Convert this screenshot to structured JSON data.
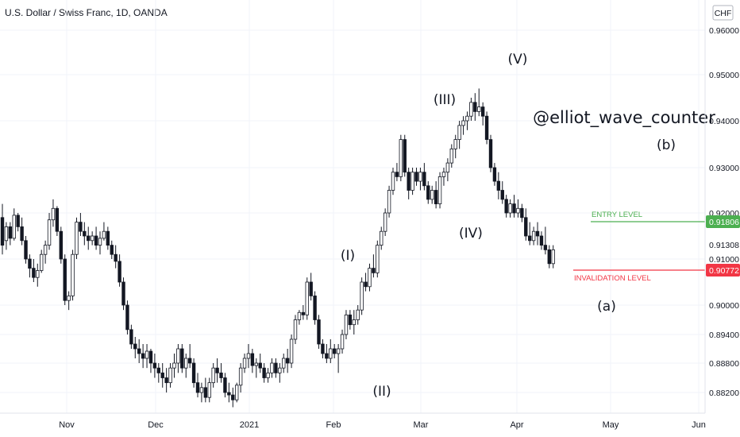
{
  "header": {
    "title": "U.S. Dollar / Swiss Franc, 1D, OANDA",
    "currency": "CHF"
  },
  "chart_data": {
    "type": "candlestick",
    "title": "U.S. Dollar / Swiss Franc, 1D, OANDA",
    "ylim": [
      0.88,
      0.96
    ],
    "y_ticks": [
      "0.96000",
      "0.95000",
      "0.94000",
      "0.93000",
      "0.92000",
      "0.91000",
      "0.90000",
      "0.89400",
      "0.88800",
      "0.88200"
    ],
    "x_ticks": [
      "Nov",
      "Dec",
      "2021",
      "Feb",
      "Mar",
      "Apr",
      "May",
      "Jun"
    ],
    "first_date": "2020-10-01",
    "candles": [
      [
        0.919,
        0.922,
        0.911,
        0.913
      ],
      [
        0.914,
        0.918,
        0.912,
        0.917
      ],
      [
        0.917,
        0.918,
        0.913,
        0.9145
      ],
      [
        0.9145,
        0.921,
        0.914,
        0.9195
      ],
      [
        0.9195,
        0.92,
        0.916,
        0.917
      ],
      [
        0.917,
        0.919,
        0.913,
        0.914
      ],
      [
        0.914,
        0.915,
        0.909,
        0.91
      ],
      [
        0.91,
        0.911,
        0.906,
        0.908
      ],
      [
        0.908,
        0.91,
        0.905,
        0.906
      ],
      [
        0.906,
        0.909,
        0.904,
        0.9075
      ],
      [
        0.9075,
        0.912,
        0.907,
        0.911
      ],
      [
        0.911,
        0.914,
        0.909,
        0.913
      ],
      [
        0.913,
        0.92,
        0.912,
        0.9185
      ],
      [
        0.9185,
        0.923,
        0.917,
        0.921
      ],
      [
        0.921,
        0.9215,
        0.915,
        0.916
      ],
      [
        0.916,
        0.917,
        0.909,
        0.91
      ],
      [
        0.91,
        0.911,
        0.9,
        0.901
      ],
      [
        0.901,
        0.903,
        0.899,
        0.902
      ],
      [
        0.902,
        0.912,
        0.901,
        0.911
      ],
      [
        0.911,
        0.919,
        0.91,
        0.918
      ],
      [
        0.918,
        0.92,
        0.915,
        0.916
      ],
      [
        0.916,
        0.918,
        0.913,
        0.915
      ],
      [
        0.915,
        0.917,
        0.912,
        0.914
      ],
      [
        0.914,
        0.916,
        0.913,
        0.915
      ],
      [
        0.915,
        0.917,
        0.912,
        0.913
      ],
      [
        0.913,
        0.916,
        0.911,
        0.9145
      ],
      [
        0.9145,
        0.918,
        0.914,
        0.916
      ],
      [
        0.916,
        0.917,
        0.912,
        0.913
      ],
      [
        0.913,
        0.914,
        0.91,
        0.911
      ],
      [
        0.911,
        0.913,
        0.908,
        0.9095
      ],
      [
        0.9095,
        0.911,
        0.904,
        0.905
      ],
      [
        0.905,
        0.906,
        0.899,
        0.9
      ],
      [
        0.9,
        0.901,
        0.894,
        0.895
      ],
      [
        0.895,
        0.896,
        0.891,
        0.892
      ],
      [
        0.892,
        0.8935,
        0.889,
        0.891
      ],
      [
        0.891,
        0.893,
        0.888,
        0.89
      ],
      [
        0.89,
        0.892,
        0.887,
        0.889
      ],
      [
        0.889,
        0.892,
        0.887,
        0.8905
      ],
      [
        0.8905,
        0.891,
        0.886,
        0.888
      ],
      [
        0.888,
        0.89,
        0.885,
        0.887
      ],
      [
        0.887,
        0.888,
        0.884,
        0.886
      ],
      [
        0.886,
        0.888,
        0.883,
        0.885
      ],
      [
        0.885,
        0.887,
        0.882,
        0.884
      ],
      [
        0.884,
        0.888,
        0.883,
        0.887
      ],
      [
        0.887,
        0.89,
        0.885,
        0.888
      ],
      [
        0.888,
        0.892,
        0.886,
        0.891
      ],
      [
        0.891,
        0.892,
        0.886,
        0.887
      ],
      [
        0.887,
        0.89,
        0.885,
        0.889
      ],
      [
        0.889,
        0.892,
        0.887,
        0.888
      ],
      [
        0.888,
        0.889,
        0.883,
        0.884
      ],
      [
        0.884,
        0.886,
        0.881,
        0.882
      ],
      [
        0.882,
        0.884,
        0.88,
        0.883
      ],
      [
        0.883,
        0.885,
        0.88,
        0.881
      ],
      [
        0.881,
        0.885,
        0.88,
        0.884
      ],
      [
        0.884,
        0.888,
        0.883,
        0.887
      ],
      [
        0.887,
        0.889,
        0.884,
        0.886
      ],
      [
        0.886,
        0.888,
        0.884,
        0.885
      ],
      [
        0.885,
        0.886,
        0.881,
        0.882
      ],
      [
        0.882,
        0.884,
        0.88,
        0.8815
      ],
      [
        0.8815,
        0.883,
        0.879,
        0.8805
      ],
      [
        0.8805,
        0.884,
        0.88,
        0.8835
      ],
      [
        0.8835,
        0.888,
        0.882,
        0.887
      ],
      [
        0.887,
        0.89,
        0.886,
        0.889
      ],
      [
        0.889,
        0.892,
        0.887,
        0.89
      ],
      [
        0.89,
        0.891,
        0.886,
        0.8875
      ],
      [
        0.8875,
        0.889,
        0.885,
        0.888
      ],
      [
        0.888,
        0.89,
        0.886,
        0.887
      ],
      [
        0.887,
        0.888,
        0.884,
        0.885
      ],
      [
        0.885,
        0.887,
        0.884,
        0.886
      ],
      [
        0.886,
        0.889,
        0.885,
        0.888
      ],
      [
        0.888,
        0.889,
        0.885,
        0.886
      ],
      [
        0.886,
        0.888,
        0.884,
        0.887
      ],
      [
        0.887,
        0.89,
        0.886,
        0.889
      ],
      [
        0.889,
        0.891,
        0.886,
        0.888
      ],
      [
        0.888,
        0.894,
        0.887,
        0.893
      ],
      [
        0.893,
        0.898,
        0.892,
        0.897
      ],
      [
        0.897,
        0.899,
        0.896,
        0.8985
      ],
      [
        0.8985,
        0.9,
        0.897,
        0.898
      ],
      [
        0.898,
        0.906,
        0.897,
        0.905
      ],
      [
        0.905,
        0.907,
        0.901,
        0.902
      ],
      [
        0.902,
        0.903,
        0.896,
        0.897
      ],
      [
        0.897,
        0.898,
        0.891,
        0.892
      ],
      [
        0.892,
        0.893,
        0.889,
        0.89
      ],
      [
        0.89,
        0.892,
        0.888,
        0.889
      ],
      [
        0.889,
        0.893,
        0.888,
        0.891
      ],
      [
        0.891,
        0.892,
        0.889,
        0.89
      ],
      [
        0.89,
        0.892,
        0.886,
        0.891
      ],
      [
        0.891,
        0.895,
        0.89,
        0.894
      ],
      [
        0.894,
        0.899,
        0.893,
        0.898
      ],
      [
        0.898,
        0.899,
        0.895,
        0.896
      ],
      [
        0.896,
        0.899,
        0.894,
        0.897
      ],
      [
        0.897,
        0.9,
        0.896,
        0.899
      ],
      [
        0.899,
        0.906,
        0.898,
        0.905
      ],
      [
        0.905,
        0.907,
        0.903,
        0.904
      ],
      [
        0.904,
        0.909,
        0.903,
        0.908
      ],
      [
        0.908,
        0.911,
        0.906,
        0.907
      ],
      [
        0.907,
        0.914,
        0.906,
        0.913
      ],
      [
        0.913,
        0.917,
        0.912,
        0.916
      ],
      [
        0.916,
        0.921,
        0.915,
        0.92
      ],
      [
        0.92,
        0.926,
        0.919,
        0.925
      ],
      [
        0.925,
        0.93,
        0.924,
        0.929
      ],
      [
        0.929,
        0.931,
        0.927,
        0.928
      ],
      [
        0.928,
        0.937,
        0.927,
        0.936
      ],
      [
        0.936,
        0.937,
        0.928,
        0.929
      ],
      [
        0.929,
        0.93,
        0.923,
        0.925
      ],
      [
        0.925,
        0.93,
        0.924,
        0.929
      ],
      [
        0.929,
        0.93,
        0.926,
        0.927
      ],
      [
        0.927,
        0.93,
        0.925,
        0.929
      ],
      [
        0.929,
        0.931,
        0.925,
        0.926
      ],
      [
        0.926,
        0.927,
        0.922,
        0.923
      ],
      [
        0.923,
        0.926,
        0.922,
        0.925
      ],
      [
        0.925,
        0.927,
        0.921,
        0.922
      ],
      [
        0.922,
        0.929,
        0.921,
        0.928
      ],
      [
        0.928,
        0.93,
        0.926,
        0.929
      ],
      [
        0.929,
        0.932,
        0.927,
        0.931
      ],
      [
        0.931,
        0.935,
        0.93,
        0.934
      ],
      [
        0.934,
        0.937,
        0.932,
        0.936
      ],
      [
        0.936,
        0.94,
        0.934,
        0.939
      ],
      [
        0.939,
        0.941,
        0.937,
        0.94
      ],
      [
        0.94,
        0.942,
        0.938,
        0.941
      ],
      [
        0.941,
        0.945,
        0.94,
        0.944
      ],
      [
        0.944,
        0.946,
        0.94,
        0.942
      ],
      [
        0.942,
        0.947,
        0.941,
        0.943
      ],
      [
        0.943,
        0.944,
        0.939,
        0.941
      ],
      [
        0.941,
        0.942,
        0.935,
        0.936
      ],
      [
        0.936,
        0.937,
        0.929,
        0.93
      ],
      [
        0.93,
        0.931,
        0.926,
        0.927
      ],
      [
        0.927,
        0.929,
        0.923,
        0.925
      ],
      [
        0.925,
        0.927,
        0.922,
        0.923
      ],
      [
        0.923,
        0.924,
        0.919,
        0.92
      ],
      [
        0.92,
        0.923,
        0.919,
        0.922
      ],
      [
        0.922,
        0.924,
        0.919,
        0.92
      ],
      [
        0.92,
        0.923,
        0.919,
        0.921
      ],
      [
        0.921,
        0.922,
        0.918,
        0.919
      ],
      [
        0.919,
        0.921,
        0.914,
        0.915
      ],
      [
        0.915,
        0.918,
        0.913,
        0.914
      ],
      [
        0.914,
        0.917,
        0.913,
        0.916
      ],
      [
        0.916,
        0.918,
        0.913,
        0.915
      ],
      [
        0.915,
        0.916,
        0.912,
        0.913
      ],
      [
        0.913,
        0.917,
        0.911,
        0.912
      ],
      [
        0.912,
        0.913,
        0.908,
        0.909
      ],
      [
        0.909,
        0.913,
        0.908,
        0.912
      ]
    ],
    "annotations": [
      "(I)",
      "(II)",
      "(III)",
      "(IV)",
      "(V)",
      "(a)",
      "(b)"
    ],
    "handle": "@elliot_wave_counter",
    "levels": [
      {
        "label": "ENTRY LEVEL",
        "value": "0.91806",
        "color": "#4caf50"
      },
      {
        "label": "INVALIDATION LEVEL",
        "value": "0.90772",
        "color": "#f23645"
      }
    ],
    "crosshair_value": "0.91308",
    "grid": true
  }
}
